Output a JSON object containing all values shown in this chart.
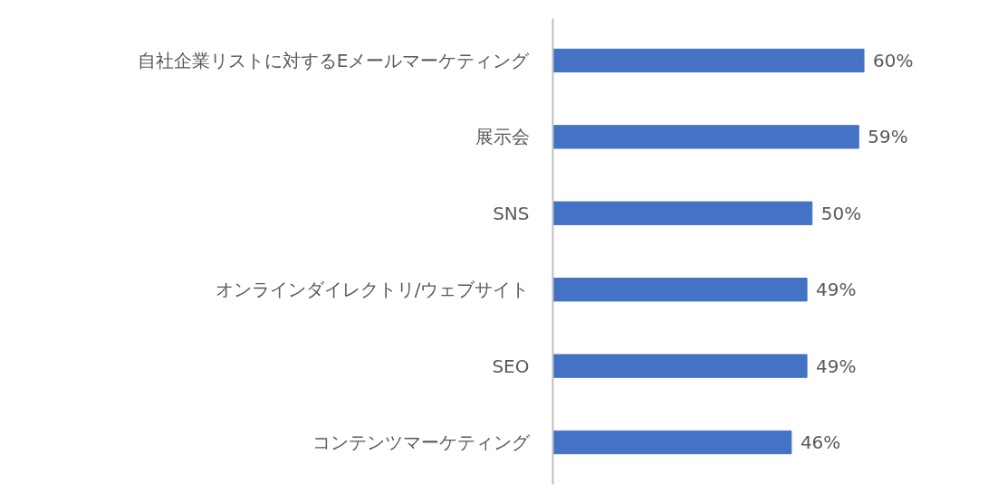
{
  "chart_data": {
    "type": "bar",
    "orientation": "horizontal",
    "categories": [
      "自社企業リストに対するEメールマーケティング",
      "展示会",
      "SNS",
      "オンラインダイレクトリ/ウェブサイト",
      "SEO",
      "コンテンツマーケティング"
    ],
    "values": [
      60,
      59,
      50,
      49,
      49,
      46
    ],
    "value_labels": [
      "60%",
      "59%",
      "50%",
      "49%",
      "49%",
      "46%"
    ],
    "color": "#4472c4",
    "grid": false
  }
}
